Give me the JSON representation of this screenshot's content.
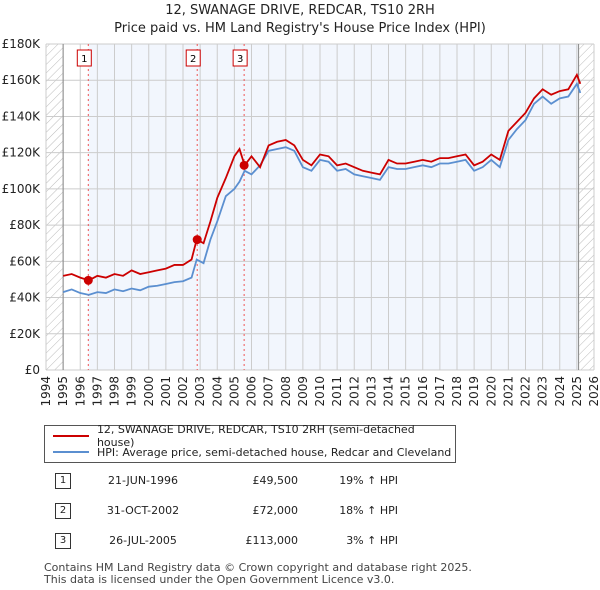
{
  "chart_data": {
    "type": "line",
    "title": "12, SWANAGE DRIVE, REDCAR, TS10 2RH",
    "subtitle": "Price paid vs. HM Land Registry's House Price Index (HPI)",
    "xlim": [
      1994,
      2026
    ],
    "ylim": [
      0,
      180000
    ],
    "x_ticks": [
      "1994",
      "1995",
      "1996",
      "1997",
      "1998",
      "1999",
      "2000",
      "2001",
      "2002",
      "2003",
      "2004",
      "2005",
      "2006",
      "2007",
      "2008",
      "2009",
      "2010",
      "2011",
      "2012",
      "2013",
      "2014",
      "2015",
      "2016",
      "2017",
      "2018",
      "2019",
      "2020",
      "2021",
      "2022",
      "2023",
      "2024",
      "2025",
      "2026"
    ],
    "y_ticks": [
      {
        "v": 0,
        "label": "£0"
      },
      {
        "v": 20000,
        "label": "£20K"
      },
      {
        "v": 40000,
        "label": "£40K"
      },
      {
        "v": 60000,
        "label": "£60K"
      },
      {
        "v": 80000,
        "label": "£80K"
      },
      {
        "v": 100000,
        "label": "£100K"
      },
      {
        "v": 120000,
        "label": "£120K"
      },
      {
        "v": 140000,
        "label": "£140K"
      },
      {
        "v": 160000,
        "label": "£160K"
      },
      {
        "v": 180000,
        "label": "£180K"
      }
    ],
    "series": [
      {
        "name": "12, SWANAGE DRIVE, REDCAR, TS10 2RH (semi-detached house)",
        "color": "#cc0000",
        "x": [
          1995,
          1995.5,
          1996,
          1996.5,
          1997,
          1997.5,
          1998,
          1998.5,
          1999,
          1999.5,
          2000,
          2000.5,
          2001,
          2001.5,
          2002,
          2002.5,
          2002.8,
          2003.2,
          2003.6,
          2004,
          2004.5,
          2005,
          2005.3,
          2005.6,
          2006,
          2006.5,
          2007,
          2007.5,
          2008,
          2008.5,
          2009,
          2009.5,
          2010,
          2010.5,
          2011,
          2011.5,
          2012,
          2012.5,
          2013,
          2013.5,
          2014,
          2014.5,
          2015,
          2015.5,
          2016,
          2016.5,
          2017,
          2017.5,
          2018,
          2018.5,
          2019,
          2019.5,
          2020,
          2020.5,
          2021,
          2021.5,
          2022,
          2022.5,
          2023,
          2023.5,
          2024,
          2024.5,
          2025,
          2025.2
        ],
        "y": [
          52000,
          53000,
          51000,
          49500,
          52000,
          51000,
          53000,
          52000,
          55000,
          53000,
          54000,
          55000,
          56000,
          58000,
          58000,
          61000,
          72000,
          70000,
          82000,
          95000,
          106000,
          118000,
          122000,
          113000,
          118000,
          112000,
          124000,
          126000,
          127000,
          124000,
          116000,
          113000,
          119000,
          118000,
          113000,
          114000,
          112000,
          110000,
          109000,
          108000,
          116000,
          114000,
          114000,
          115000,
          116000,
          115000,
          117000,
          117000,
          118000,
          119000,
          113000,
          115000,
          119000,
          116000,
          132000,
          137000,
          142000,
          150000,
          155000,
          152000,
          154000,
          155000,
          163000,
          158000
        ]
      },
      {
        "name": "HPI: Average price, semi-detached house, Redcar and Cleveland",
        "color": "#5b8fd0",
        "x": [
          1995,
          1995.5,
          1996,
          1996.5,
          1997,
          1997.5,
          1998,
          1998.5,
          1999,
          1999.5,
          2000,
          2000.5,
          2001,
          2001.5,
          2002,
          2002.5,
          2002.8,
          2003.2,
          2003.6,
          2004,
          2004.5,
          2005,
          2005.3,
          2005.6,
          2006,
          2006.5,
          2007,
          2007.5,
          2008,
          2008.5,
          2009,
          2009.5,
          2010,
          2010.5,
          2011,
          2011.5,
          2012,
          2012.5,
          2013,
          2013.5,
          2014,
          2014.5,
          2015,
          2015.5,
          2016,
          2016.5,
          2017,
          2017.5,
          2018,
          2018.5,
          2019,
          2019.5,
          2020,
          2020.5,
          2021,
          2021.5,
          2022,
          2022.5,
          2023,
          2023.5,
          2024,
          2024.5,
          2025,
          2025.2
        ],
        "y": [
          43000,
          44500,
          42500,
          41500,
          43000,
          42500,
          44500,
          43500,
          45000,
          44000,
          46000,
          46500,
          47500,
          48500,
          49000,
          51000,
          61000,
          59000,
          72000,
          82000,
          96000,
          100000,
          104000,
          110000,
          108000,
          113000,
          121000,
          122000,
          123000,
          121000,
          112000,
          110000,
          116000,
          115000,
          110000,
          111000,
          108000,
          107000,
          106000,
          105000,
          112000,
          111000,
          111000,
          112000,
          113000,
          112000,
          114000,
          114000,
          115000,
          116000,
          110000,
          112000,
          116000,
          112000,
          127000,
          133000,
          138000,
          147000,
          151000,
          147000,
          150000,
          151000,
          158000,
          153000
        ]
      }
    ],
    "sales": [
      {
        "id": "1",
        "x": 1996.47,
        "y": 49500
      },
      {
        "id": "2",
        "x": 2002.83,
        "y": 72000
      },
      {
        "id": "3",
        "x": 2005.57,
        "y": 113000
      }
    ]
  },
  "legend": [
    "12, SWANAGE DRIVE, REDCAR, TS10 2RH (semi-detached house)",
    "HPI: Average price, semi-detached house, Redcar and Cleveland"
  ],
  "transactions": [
    {
      "num": "1",
      "date": "21-JUN-1996",
      "price": "£49,500",
      "hpi": "19% ↑ HPI"
    },
    {
      "num": "2",
      "date": "31-OCT-2002",
      "price": "£72,000",
      "hpi": "18% ↑ HPI"
    },
    {
      "num": "3",
      "date": "26-JUL-2005",
      "price": "£113,000",
      "hpi": "3% ↑ HPI"
    }
  ],
  "footer": [
    "Contains HM Land Registry data © Crown copyright and database right 2025.",
    "This data is licensed under the Open Government Licence v3.0."
  ]
}
